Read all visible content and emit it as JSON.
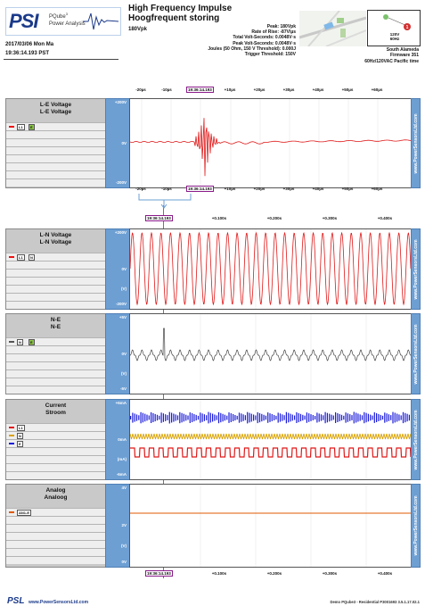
{
  "header": {
    "logo": "PSI",
    "product": "PQube",
    "product_sup": "3",
    "product_sub": "Power Analysis",
    "title_line1": "High Frequency Impulse",
    "title_line2": "Hoogfrequent storing",
    "magnitude": "180Vpk",
    "stats": [
      "Peak: 180Vpk",
      "Rate of Rise: -87V/µs",
      "Total Volt-Seconds: 0.0048V·s",
      "Peak Volt-Seconds: 0.0048V·s",
      "Joules (50 Ohm, 150 V Threshold): 0.000J",
      "Trigger Threshold: 150V"
    ],
    "date": "2017/03/06 Mon Ma",
    "time": "19:36:14.193 PST",
    "badge_voltage": "120V",
    "badge_freq": "60Hz",
    "location_lines": [
      "South Alameda",
      "Firmware 351",
      "60Hz/120VAC Pacific time"
    ]
  },
  "top_axis": {
    "ticks": [
      "-20µs",
      "-10µs",
      "+10µs",
      "+20µs",
      "+30µs",
      "+40µs",
      "+50µs",
      "+60µs"
    ],
    "marker": "19:36:14.193"
  },
  "mid_axis": {
    "ticks": [
      "-20µs",
      "-10µs",
      "+10µs",
      "+20µs",
      "+30µs",
      "+40µs",
      "+50µs",
      "+60µs"
    ],
    "marker": "19:36:14.193"
  },
  "main_axis": {
    "ticks": [
      "+0.100s",
      "+0.200s",
      "+0.300s",
      "+0.400s"
    ],
    "marker": "19:36:14.193"
  },
  "bottom_axis": {
    "ticks": [
      "+0.100s",
      "+0.200s",
      "+0.300s",
      "+0.400s"
    ],
    "marker": "19:36:14.193"
  },
  "panels": [
    {
      "id": "le",
      "title1": "L-E Voltage",
      "title2": "L-E Voltage",
      "chips": [
        "L1",
        "E"
      ],
      "swatch": "#e11",
      "ylabels": [
        "+200V",
        "0V",
        "-200V"
      ]
    },
    {
      "id": "ln",
      "title1": "L-N Voltage",
      "title2": "L-N Voltage",
      "chips": [
        "L1",
        "N"
      ],
      "swatch": "#e11",
      "ylabels": [
        "+200V",
        "0V",
        "(V)",
        "-200V"
      ]
    },
    {
      "id": "ne",
      "title1": "N-E",
      "title2": "N-E",
      "chips": [
        "N",
        "E"
      ],
      "swatch": "#555",
      "ylabels": [
        "+5V",
        "0V",
        "(V)",
        "-5V"
      ]
    },
    {
      "id": "cur",
      "title1": "Current",
      "title2": "Stroom",
      "chips": [
        "L1",
        "N",
        "E"
      ],
      "swatch": "#e11",
      "ylabels": [
        "+6mA",
        "0mA",
        "(mA)",
        "-6mA"
      ]
    },
    {
      "id": "an",
      "title1": "Analog",
      "title2": "Analoog",
      "chips": [
        "AN1-E"
      ],
      "swatch": "#e05a00",
      "ylabels": [
        "4V",
        "2V",
        "(V)",
        "0V"
      ]
    }
  ],
  "brand_text": "www.PowerSensorsLtd.com",
  "footer": {
    "logo": "PSL",
    "url": "www.PowerSensorsLtd.com",
    "right": "Demo PQube3 - Residential P3001693 3.5.1.17.02.1"
  },
  "colors": {
    "red": "#e01818",
    "blue": "#1a1ad8",
    "gold": "#d9a100",
    "dark": "#333333",
    "orange": "#e05a00",
    "marker": "#b030b0",
    "side": "#6d9fd3"
  }
}
